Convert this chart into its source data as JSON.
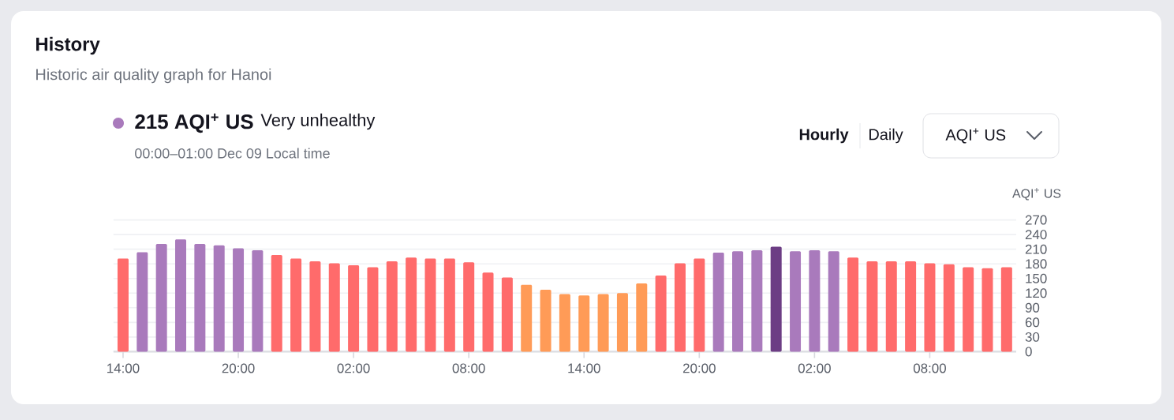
{
  "chart_data": {
    "type": "bar",
    "title": "History",
    "subtitle": "Historic air quality graph for Hanoi",
    "ylabel": "AQI$^{+}$ US",
    "annotations": [
      "215 AQI$^{+}$ US",
      "Very unhealthy",
      "00:00–01:00 Dec 09 Local time",
      "Hourly",
      "Daily",
      "AQI$^{+}$ US"
    ],
    "categories": [
      "14:00",
      null,
      null,
      null,
      null,
      null,
      "20:00",
      null,
      null,
      null,
      null,
      null,
      "02:00",
      null,
      null,
      null,
      null,
      null,
      "08:00",
      null,
      null,
      null,
      null,
      null,
      "14:00",
      null,
      null,
      null,
      null,
      null,
      "20:00",
      null,
      null,
      null,
      null,
      null,
      "02:00",
      null,
      null,
      null,
      null,
      null,
      "08:00",
      null,
      null,
      null,
      null
    ],
    "values": [
      191,
      204,
      221,
      230,
      221,
      218,
      212,
      208,
      198,
      191,
      185,
      181,
      177,
      173,
      185,
      193,
      191,
      191,
      183,
      162,
      152,
      137,
      127,
      118,
      115,
      118,
      120,
      140,
      156,
      181,
      191,
      203,
      206,
      208,
      215,
      206,
      208,
      206,
      193,
      185,
      185,
      185,
      181,
      179,
      173,
      171,
      173
    ],
    "colors": [
      "#ff6b6b",
      "#a97abc",
      "#a97abc",
      "#a97abc",
      "#a97abc",
      "#a97abc",
      "#a97abc",
      "#a97abc",
      "#ff6b6b",
      "#ff6b6b",
      "#ff6b6b",
      "#ff6b6b",
      "#ff6b6b",
      "#ff6b6b",
      "#ff6b6b",
      "#ff6b6b",
      "#ff6b6b",
      "#ff6b6b",
      "#ff6b6b",
      "#ff6b6b",
      "#ff6b6b",
      "#ff9b57",
      "#ff9b57",
      "#ff9b57",
      "#ff9b57",
      "#ff9b57",
      "#ff9b57",
      "#ff9b57",
      "#ff6b6b",
      "#ff6b6b",
      "#ff6b6b",
      "#a97abc",
      "#a97abc",
      "#a97abc",
      "#6c3d84",
      "#a97abc",
      "#a97abc",
      "#a97abc",
      "#ff6b6b",
      "#ff6b6b",
      "#ff6b6b",
      "#ff6b6b",
      "#ff6b6b",
      "#ff6b6b",
      "#ff6b6b",
      "#ff6b6b",
      "#ff6b6b"
    ],
    "ylim": [
      0,
      270
    ],
    "yticks": [
      0,
      30,
      60,
      90,
      120,
      150,
      180,
      210,
      240,
      270
    ],
    "grid": "y"
  }
}
